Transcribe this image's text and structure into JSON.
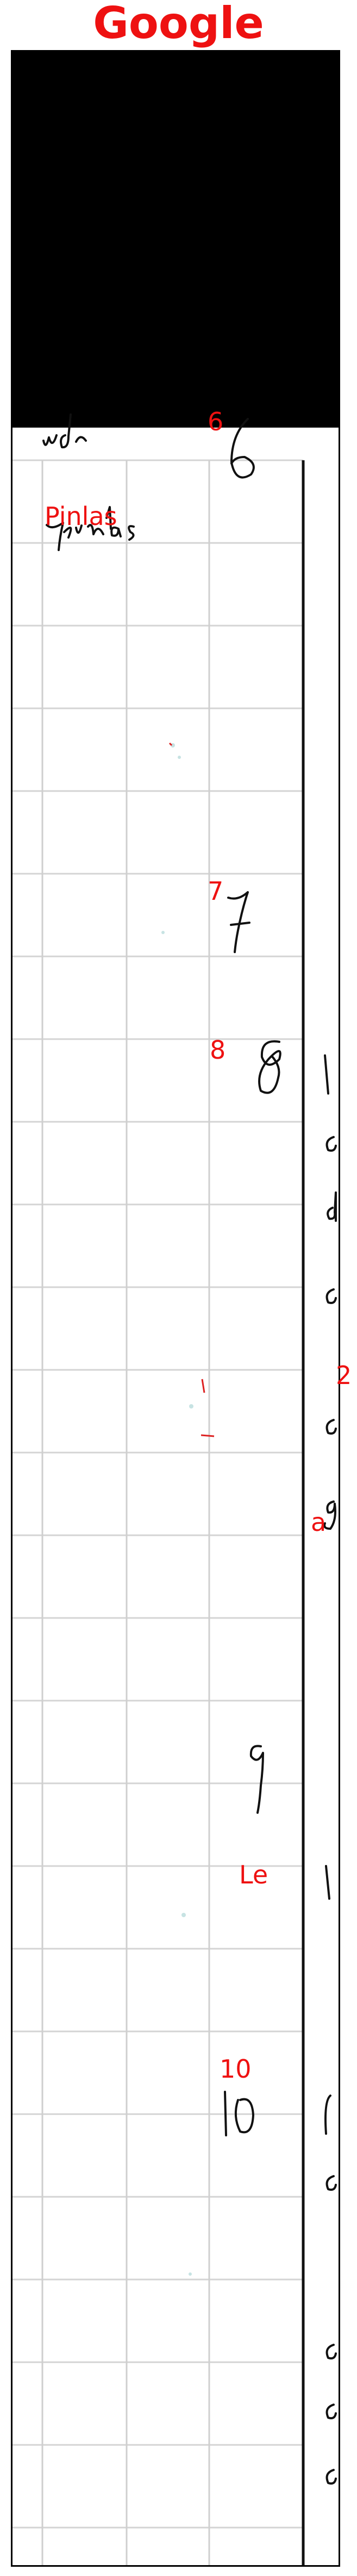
{
  "header": {
    "title": "Google"
  },
  "labels": {
    "label_6": "6",
    "label_pinlas": "Pinlas",
    "label_7": "7",
    "label_8": "8",
    "label_2": "2",
    "label_a": "a",
    "label_le": "Le",
    "label_10": "10"
  },
  "colors": {
    "label_red": "#ee1111",
    "panel_black": "#000000",
    "grid_gray": "#d4d4d4",
    "ink": "#111111"
  }
}
